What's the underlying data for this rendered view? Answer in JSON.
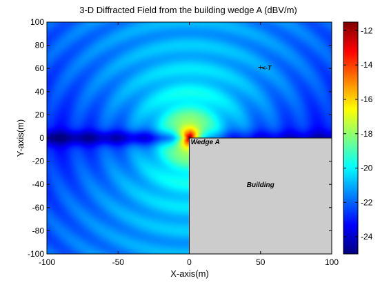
{
  "chart_data": {
    "type": "heatmap",
    "title": "3-D Diffracted Field from the building wedge A (dBV/m)",
    "xlabel": "X-axis(m)",
    "ylabel": "Y-axis(m)",
    "xlim": [
      -100,
      100
    ],
    "ylim": [
      -100,
      100
    ],
    "x_ticks": [
      -100,
      -50,
      0,
      50,
      100
    ],
    "y_ticks": [
      100,
      80,
      60,
      40,
      20,
      0,
      -20,
      -40,
      -60,
      -80,
      -100
    ],
    "grid": false,
    "colorbar": {
      "range": [
        -25,
        -11.5
      ],
      "ticks": [
        -12,
        -14,
        -16,
        -18,
        -20,
        -22,
        -24
      ],
      "colormap": "jet",
      "position": "right"
    },
    "source": {
      "x": 0,
      "y": 0,
      "peak_dbv_m": -11.5
    },
    "background_dbv_m": -24,
    "shadow_dbv_m": -25,
    "building": {
      "x_range": [
        0,
        100
      ],
      "y_range": [
        -100,
        0
      ],
      "color": "#cccccc"
    },
    "annotations": [
      {
        "text": "Wedge A",
        "x": 1,
        "y": -3
      },
      {
        "text": "Building",
        "x": 50,
        "y": -40
      },
      {
        "text": "<-T",
        "x": 50,
        "y": 61
      }
    ]
  }
}
